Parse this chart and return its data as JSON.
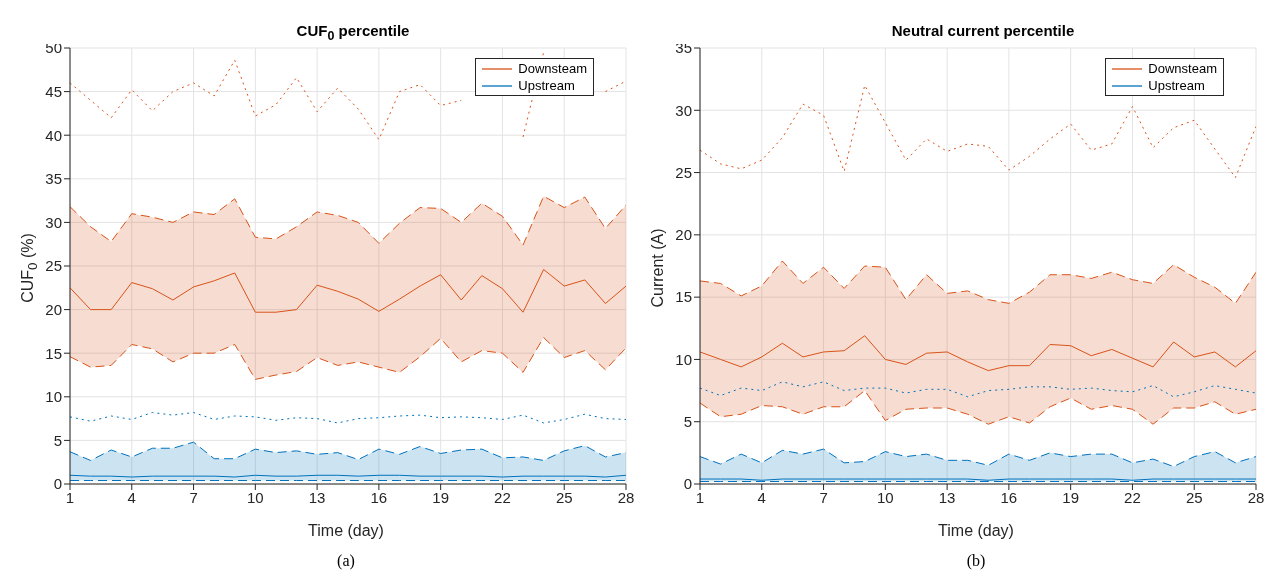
{
  "chart_data": [
    {
      "type": "line",
      "title": "CUF$_{0}$ percentile",
      "xlabel": "Time (day)",
      "ylabel": "CUF$_{0}$ (%)",
      "annotations": [
        "(a)"
      ],
      "x": [
        1,
        2,
        3,
        4,
        5,
        6,
        7,
        8,
        9,
        10,
        11,
        12,
        13,
        14,
        15,
        16,
        17,
        18,
        19,
        20,
        21,
        22,
        23,
        24,
        25,
        26,
        27,
        28
      ],
      "xlim": [
        1,
        28
      ],
      "xticks": [
        1,
        4,
        7,
        10,
        13,
        16,
        19,
        22,
        25,
        28
      ],
      "ylim": [
        0,
        50
      ],
      "yticks": [
        0,
        5,
        10,
        15,
        20,
        25,
        30,
        35,
        40,
        45,
        50
      ],
      "grid": true,
      "legend": "top right",
      "series": [
        {
          "color": "#d95319",
          "line_style": "dotted",
          "values": [
            46,
            44,
            42,
            45.2,
            42.8,
            45,
            46,
            44.5,
            48.6,
            42.2,
            43.5,
            46.6,
            42.7,
            45.4,
            43,
            39.5,
            45,
            45.8,
            43.4,
            44,
            null,
            null,
            39.8,
            49.5,
            null,
            null,
            45,
            46.2
          ]
        },
        {
          "color": "#d95319",
          "line_style": "dashed",
          "values": [
            14.6,
            13.4,
            13.6,
            16,
            15.5,
            14,
            15,
            15,
            16,
            12,
            12.5,
            12.9,
            14.5,
            13.6,
            14,
            13.4,
            12.8,
            14.6,
            16.7,
            14,
            15.3,
            15,
            12.8,
            16.8,
            14.5,
            15.3,
            13.1,
            15.6
          ]
        },
        {
          "color": "#d95319",
          "line_style": "dashed",
          "values": [
            31.8,
            29.5,
            27.8,
            31,
            30.6,
            30,
            31.2,
            30.9,
            32.7,
            28.3,
            28.1,
            29.5,
            31.2,
            30.8,
            30,
            27.6,
            29.9,
            31.7,
            31.6,
            30,
            32.2,
            30.7,
            27.4,
            33,
            31.7,
            32.9,
            29.3,
            32
          ]
        },
        {
          "color": "#0072bd",
          "line_style": "dashed",
          "values": [
            0.4,
            0.4,
            0.4,
            0.4,
            0.4,
            0.4,
            0.4,
            0.4,
            0.4,
            0.4,
            0.4,
            0.4,
            0.4,
            0.4,
            0.4,
            0.4,
            0.4,
            0.4,
            0.4,
            0.4,
            0.4,
            0.4,
            0.4,
            0.4,
            0.4,
            0.4,
            0.4,
            0.4
          ]
        },
        {
          "color": "#0072bd",
          "line_style": "dashed",
          "values": [
            3.7,
            2.7,
            3.9,
            3.1,
            4.1,
            4.1,
            4.8,
            2.9,
            2.9,
            4,
            3.6,
            3.8,
            3.4,
            3.6,
            2.8,
            4,
            3.4,
            4.3,
            3.5,
            3.9,
            4,
            3,
            3.1,
            2.7,
            3.8,
            4.4,
            3.1,
            3.6
          ]
        },
        {
          "name": "Downsteam",
          "color": "#d95319",
          "line_style": "solid",
          "values": [
            22.5,
            20,
            20,
            23.1,
            22.4,
            21.1,
            22.6,
            23.3,
            24.2,
            19.7,
            19.7,
            20,
            22.8,
            22.1,
            21.2,
            19.8,
            21.2,
            22.7,
            24,
            21.1,
            23.9,
            22.4,
            19.7,
            24.6,
            22.7,
            23.4,
            20.7,
            22.7
          ],
          "lower": [
            14.6,
            13.4,
            13.6,
            16,
            15.5,
            14,
            15,
            15,
            16,
            12,
            12.5,
            12.9,
            14.5,
            13.6,
            14,
            13.4,
            12.8,
            14.6,
            16.7,
            14,
            15.3,
            15,
            12.8,
            16.8,
            14.5,
            15.3,
            13.1,
            15.6
          ],
          "upper": [
            31.8,
            29.5,
            27.8,
            31,
            30.6,
            30,
            31.2,
            30.9,
            32.7,
            28.3,
            28.1,
            29.5,
            31.2,
            30.8,
            30,
            27.6,
            29.9,
            31.7,
            31.6,
            30,
            32.2,
            30.7,
            27.4,
            33,
            31.7,
            32.9,
            29.3,
            32
          ]
        },
        {
          "color": "#0072bd",
          "line_style": "dotted",
          "values": [
            7.7,
            7.2,
            7.8,
            7.4,
            8.2,
            7.9,
            8.2,
            7.4,
            7.8,
            7.7,
            7.3,
            7.6,
            7.5,
            7,
            7.5,
            7.6,
            7.8,
            7.9,
            7.6,
            7.7,
            7.6,
            7.4,
            7.9,
            7,
            7.4,
            8,
            7.5,
            7.4
          ]
        },
        {
          "name": "Upstream",
          "color": "#0072bd",
          "line_style": "solid",
          "values": [
            1,
            0.9,
            0.9,
            0.8,
            0.9,
            0.9,
            0.9,
            0.9,
            0.8,
            1,
            0.9,
            0.9,
            1,
            1,
            0.9,
            1,
            1,
            0.9,
            0.9,
            0.9,
            0.9,
            0.8,
            0.9,
            0.9,
            0.9,
            0.9,
            0.8,
            1
          ],
          "lower": [
            0.4,
            0.4,
            0.4,
            0.4,
            0.4,
            0.4,
            0.4,
            0.4,
            0.4,
            0.4,
            0.4,
            0.4,
            0.4,
            0.4,
            0.4,
            0.4,
            0.4,
            0.4,
            0.4,
            0.4,
            0.4,
            0.4,
            0.4,
            0.4,
            0.4,
            0.4,
            0.4,
            0.4
          ],
          "upper": [
            3.7,
            2.7,
            3.9,
            3.1,
            4.1,
            4.1,
            4.8,
            2.9,
            2.9,
            4,
            3.6,
            3.8,
            3.4,
            3.6,
            2.8,
            4,
            3.4,
            4.3,
            3.5,
            3.9,
            4,
            3,
            3.1,
            2.7,
            3.8,
            4.4,
            3.1,
            3.6
          ]
        }
      ]
    },
    {
      "type": "line",
      "title": "Neutral current percentile",
      "xlabel": "Time (day)",
      "ylabel": "Current (A)",
      "annotations": [
        "(b)"
      ],
      "x": [
        1,
        2,
        3,
        4,
        5,
        6,
        7,
        8,
        9,
        10,
        11,
        12,
        13,
        14,
        15,
        16,
        17,
        18,
        19,
        20,
        21,
        22,
        23,
        24,
        25,
        26,
        27,
        28
      ],
      "xlim": [
        1,
        28
      ],
      "xticks": [
        1,
        4,
        7,
        10,
        13,
        16,
        19,
        22,
        25,
        28
      ],
      "ylim": [
        0,
        35
      ],
      "yticks": [
        0,
        5,
        10,
        15,
        20,
        25,
        30,
        35
      ],
      "grid": true,
      "legend": "top right",
      "series": [
        {
          "color": "#d95319",
          "line_style": "dotted",
          "values": [
            26.8,
            25.7,
            25.3,
            26,
            27.8,
            30.5,
            29.6,
            25.1,
            32,
            29,
            26,
            27.7,
            26.7,
            27.3,
            27.1,
            25.2,
            26.3,
            27.7,
            28.9,
            26.8,
            27.3,
            30.3,
            27,
            28.6,
            29.2,
            26.9,
            24.6,
            28.7
          ]
        },
        {
          "color": "#d95319",
          "line_style": "dashed",
          "values": [
            6.5,
            5.4,
            5.6,
            6.3,
            6.2,
            5.6,
            6.2,
            6.2,
            7.5,
            5.1,
            6,
            6.1,
            6.1,
            5.6,
            4.8,
            5.4,
            4.9,
            6.2,
            6.9,
            6,
            6.3,
            6,
            4.8,
            6.1,
            6.1,
            6.6,
            5.6,
            6
          ]
        },
        {
          "color": "#d95319",
          "line_style": "dashed",
          "values": [
            16.3,
            16.1,
            15.1,
            15.9,
            17.9,
            16.1,
            17.4,
            15.7,
            17.5,
            17.4,
            14.8,
            16.8,
            15.3,
            15.5,
            14.8,
            14.5,
            15.4,
            16.8,
            16.8,
            16.5,
            17,
            16.4,
            16.1,
            17.6,
            16.6,
            15.8,
            14.5,
            17
          ]
        },
        {
          "color": "#0072bd",
          "line_style": "dashed",
          "values": [
            0.2,
            0.2,
            0.2,
            0.2,
            0.2,
            0.2,
            0.2,
            0.2,
            0.2,
            0.2,
            0.2,
            0.2,
            0.2,
            0.2,
            0.2,
            0.2,
            0.2,
            0.2,
            0.2,
            0.2,
            0.2,
            0.2,
            0.2,
            0.2,
            0.2,
            0.2,
            0.2,
            0.2
          ]
        },
        {
          "color": "#0072bd",
          "line_style": "dashed",
          "values": [
            2.2,
            1.6,
            2.4,
            1.7,
            2.7,
            2.4,
            2.8,
            1.7,
            1.8,
            2.6,
            2.2,
            2.4,
            1.9,
            1.9,
            1.5,
            2.4,
            1.9,
            2.5,
            2.2,
            2.4,
            2.4,
            1.7,
            2,
            1.4,
            2.2,
            2.6,
            1.7,
            2.2
          ]
        },
        {
          "name": "Downsteam",
          "color": "#d95319",
          "line_style": "solid",
          "values": [
            10.6,
            10,
            9.4,
            10.2,
            11.3,
            10.2,
            10.6,
            10.7,
            11.9,
            10,
            9.6,
            10.5,
            10.6,
            9.8,
            9.1,
            9.5,
            9.5,
            11.2,
            11.1,
            10.3,
            10.8,
            10.1,
            9.4,
            11.4,
            10.2,
            10.6,
            9.4,
            10.7
          ],
          "lower": [
            6.5,
            5.4,
            5.6,
            6.3,
            6.2,
            5.6,
            6.2,
            6.2,
            7.5,
            5.1,
            6,
            6.1,
            6.1,
            5.6,
            4.8,
            5.4,
            4.9,
            6.2,
            6.9,
            6,
            6.3,
            6,
            4.8,
            6.1,
            6.1,
            6.6,
            5.6,
            6
          ],
          "upper": [
            16.3,
            16.1,
            15.1,
            15.9,
            17.9,
            16.1,
            17.4,
            15.7,
            17.5,
            17.4,
            14.8,
            16.8,
            15.3,
            15.5,
            14.8,
            14.5,
            15.4,
            16.8,
            16.8,
            16.5,
            17,
            16.4,
            16.1,
            17.6,
            16.6,
            15.8,
            14.5,
            17
          ]
        },
        {
          "color": "#0072bd",
          "line_style": "dotted",
          "values": [
            7.7,
            7.1,
            7.7,
            7.5,
            8.2,
            7.8,
            8.2,
            7.5,
            7.7,
            7.7,
            7.3,
            7.6,
            7.6,
            7,
            7.5,
            7.6,
            7.8,
            7.8,
            7.6,
            7.7,
            7.5,
            7.4,
            7.9,
            7,
            7.4,
            7.9,
            7.6,
            7.3
          ]
        },
        {
          "name": "Upstream",
          "color": "#0072bd",
          "line_style": "solid",
          "values": [
            0.4,
            0.4,
            0.4,
            0.3,
            0.4,
            0.4,
            0.4,
            0.4,
            0.4,
            0.4,
            0.4,
            0.4,
            0.4,
            0.4,
            0.3,
            0.4,
            0.4,
            0.4,
            0.4,
            0.4,
            0.4,
            0.3,
            0.4,
            0.4,
            0.4,
            0.4,
            0.4,
            0.4
          ],
          "lower": [
            0.2,
            0.2,
            0.2,
            0.2,
            0.2,
            0.2,
            0.2,
            0.2,
            0.2,
            0.2,
            0.2,
            0.2,
            0.2,
            0.2,
            0.2,
            0.2,
            0.2,
            0.2,
            0.2,
            0.2,
            0.2,
            0.2,
            0.2,
            0.2,
            0.2,
            0.2,
            0.2,
            0.2
          ],
          "upper": [
            2.2,
            1.6,
            2.4,
            1.7,
            2.7,
            2.4,
            2.8,
            1.7,
            1.8,
            2.6,
            2.2,
            2.4,
            1.9,
            1.9,
            1.5,
            2.4,
            1.9,
            2.5,
            2.2,
            2.4,
            2.4,
            1.7,
            2,
            1.4,
            2.2,
            2.6,
            1.7,
            2.2
          ]
        }
      ]
    }
  ]
}
